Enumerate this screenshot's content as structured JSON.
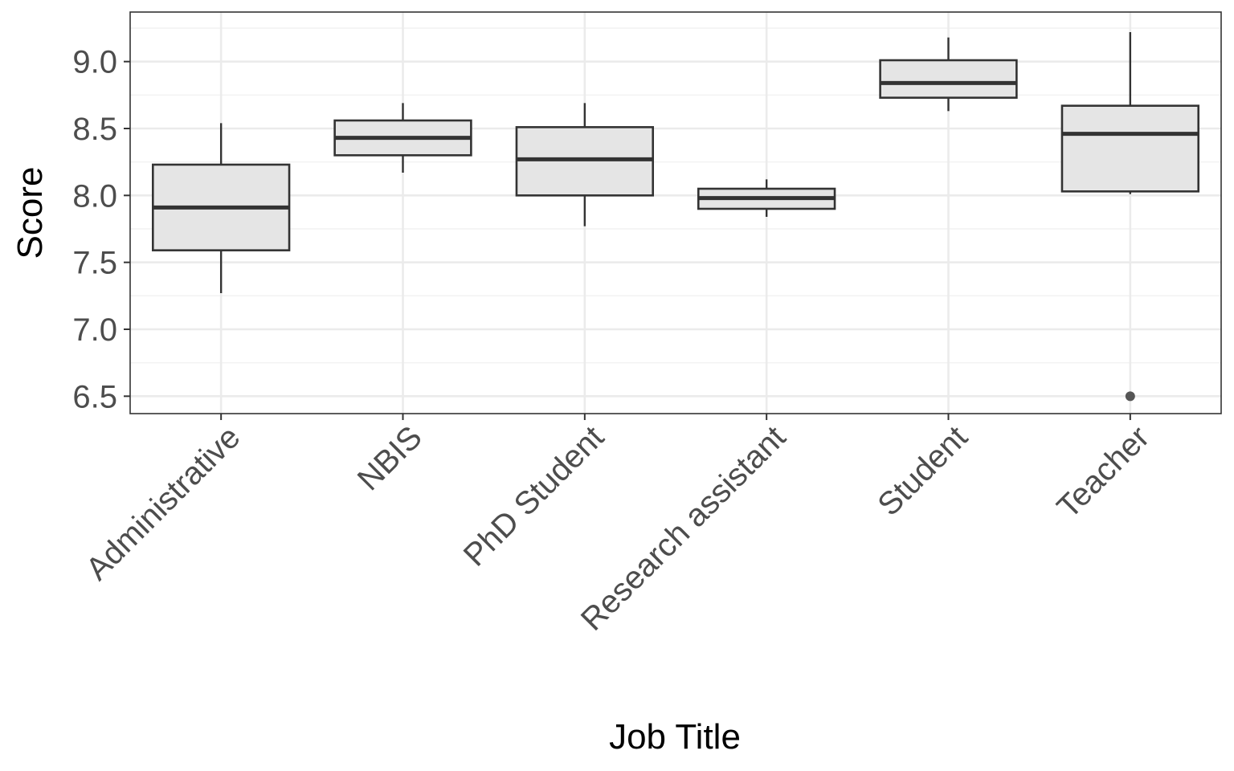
{
  "chart_data": {
    "type": "boxplot",
    "xlabel": "Job Title",
    "ylabel": "Score",
    "ylim": [
      6.37,
      9.37
    ],
    "yticks": [
      "6.5",
      "7.0",
      "7.5",
      "8.0",
      "8.5",
      "9.0"
    ],
    "grid": true,
    "categories": [
      "Administrative",
      "NBIS",
      "PhD Student",
      "Research assistant",
      "Student",
      "Teacher"
    ],
    "boxes": [
      {
        "category": "Administrative",
        "whisker_low": 7.27,
        "q1": 7.59,
        "median": 7.91,
        "q3": 8.23,
        "whisker_high": 8.54,
        "outliers": []
      },
      {
        "category": "NBIS",
        "whisker_low": 8.17,
        "q1": 8.3,
        "median": 8.43,
        "q3": 8.56,
        "whisker_high": 8.69,
        "outliers": []
      },
      {
        "category": "PhD Student",
        "whisker_low": 7.77,
        "q1": 8.0,
        "median": 8.27,
        "q3": 8.51,
        "whisker_high": 8.69,
        "outliers": []
      },
      {
        "category": "Research assistant",
        "whisker_low": 7.84,
        "q1": 7.9,
        "median": 7.98,
        "q3": 8.05,
        "whisker_high": 8.12,
        "outliers": []
      },
      {
        "category": "Student",
        "whisker_low": 8.63,
        "q1": 8.73,
        "median": 8.84,
        "q3": 9.01,
        "whisker_high": 9.18,
        "outliers": []
      },
      {
        "category": "Teacher",
        "whisker_low": 8.01,
        "q1": 8.03,
        "median": 8.46,
        "q3": 8.67,
        "whisker_high": 9.22,
        "outliers": [
          6.5
        ]
      }
    ],
    "colors": {
      "box_fill": "#e5e5e5",
      "box_stroke": "#333333",
      "outlier": "#555555",
      "panel_border": "#333333"
    }
  }
}
